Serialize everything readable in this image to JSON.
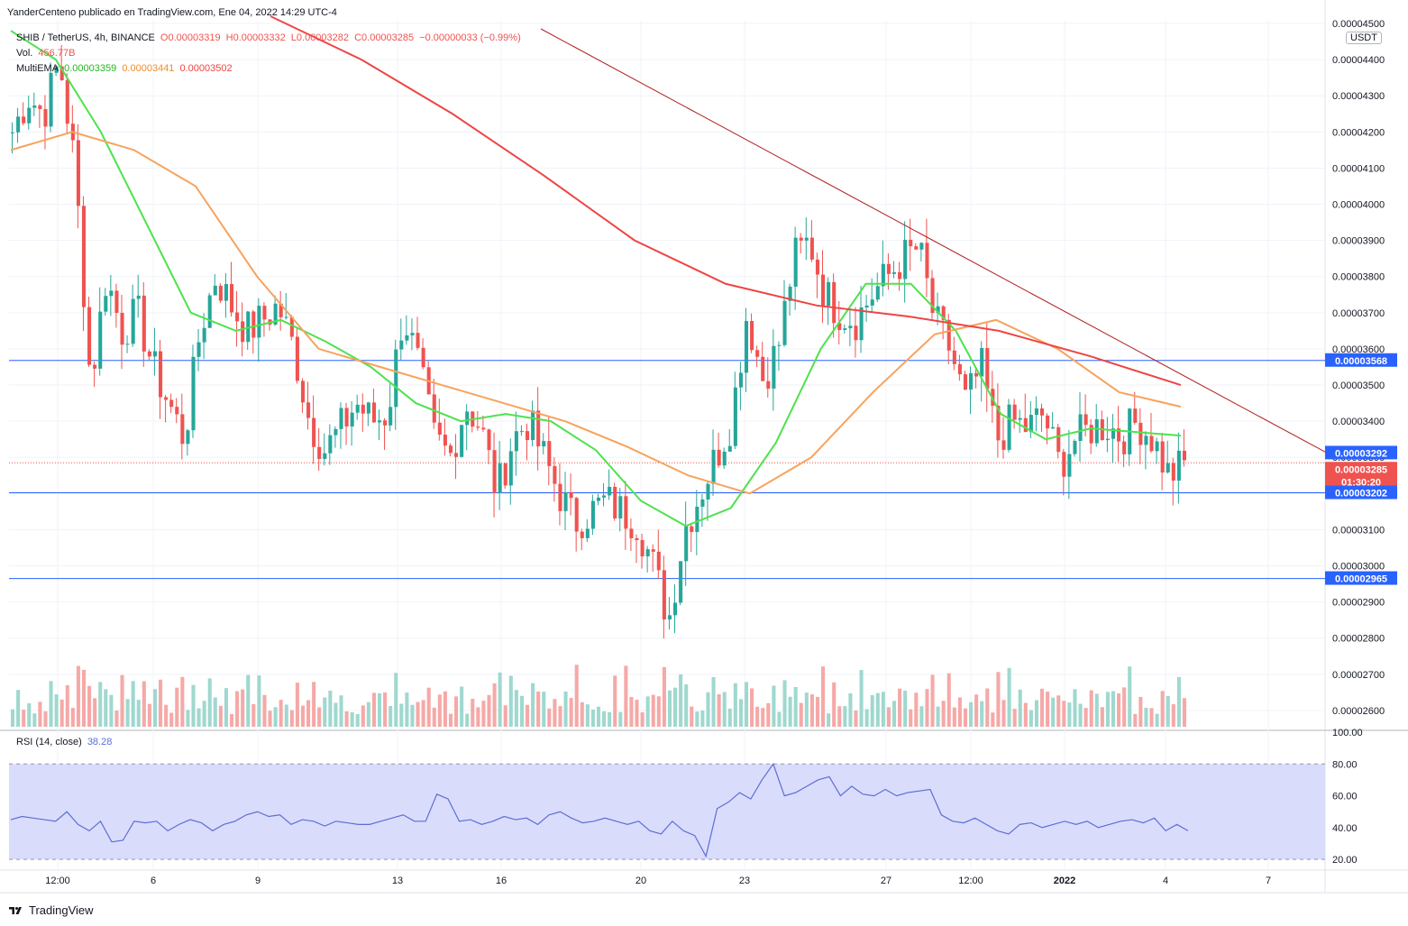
{
  "publish_line": "YanderCenteno publicado en TradingView.com, Ene 04, 2022 14:29 UTC-4",
  "header": {
    "symbol": "SHIB / TetherUS, 4h, BINANCE",
    "open": "O0.00003319",
    "high": "H0.00003332",
    "low": "L0.00003282",
    "close": "C0.00003285",
    "change": "−0.00000033 (−0.99%)",
    "vol_label": "Vol.",
    "vol_value": "456.77B",
    "ema_label": "MultiEMA",
    "ema_values": [
      "0.00003359",
      "0.00003441",
      "0.00003502"
    ]
  },
  "rsi_header": {
    "label": "RSI (14, close)",
    "value": "38.28"
  },
  "currency_badge": "USDT",
  "footer_brand": "TradingView",
  "colors": {
    "up": "#26a69a",
    "down": "#ef5350",
    "ema_fast": "#4ee24e",
    "ema_mid": "#f7a35c",
    "ema_slow": "#ef4444",
    "trend": "#b22222",
    "hline": "#2962ff",
    "rsi": "#5b6fd6",
    "rsi_band": "#d6d8fb"
  },
  "chart_data": {
    "type": "candlestick",
    "timeframe": "4h",
    "price_axis": {
      "ticks": [
        "0.00004500",
        "0.00004400",
        "0.00004300",
        "0.00004200",
        "0.00004100",
        "0.00004000",
        "0.00003900",
        "0.00003800",
        "0.00003700",
        "0.00003600",
        "0.00003500",
        "0.00003400",
        "0.00003300",
        "0.00003200",
        "0.00003100",
        "0.00003000",
        "0.00002900",
        "0.00002800",
        "0.00002700",
        "0.00002600"
      ],
      "ylim": [
        2.55e-05,
        4.51e-05
      ]
    },
    "x_axis_labels": [
      "12:00",
      "6",
      "9",
      "13",
      "16",
      "20",
      "23",
      "27",
      "12:00",
      "2022",
      "4",
      "7"
    ],
    "price_markers": [
      {
        "label": "0.00003568",
        "value": 3.568e-05,
        "color": "#2962ff"
      },
      {
        "label": "0.00003292",
        "value": 3.292e-05,
        "color": "#2962ff"
      },
      {
        "label": "0.00003285",
        "value": 3.285e-05,
        "color": "#ef5350"
      },
      {
        "label": "01:30:20",
        "value": 3.285e-05,
        "color": "#ef5350"
      },
      {
        "label": "0.00003202",
        "value": 3.202e-05,
        "color": "#2962ff"
      },
      {
        "label": "0.00002965",
        "value": 2.965e-05,
        "color": "#2962ff"
      }
    ],
    "horizontal_lines": [
      3.568e-05,
      3.202e-05,
      2.965e-05
    ],
    "trendline": {
      "from": [
        0,
        4.62e-05
      ],
      "to": [
        1.0,
        3.29e-05
      ]
    },
    "close_path": [
      4.2e-05,
      4.3e-05,
      4.25e-05,
      4.4e-05,
      4.1e-05,
      3.5e-05,
      3.8e-05,
      3.65e-05,
      3.7e-05,
      3.55e-05,
      3.45e-05,
      3.35e-05,
      3.65e-05,
      3.8e-05,
      3.72e-05,
      3.65e-05,
      3.68e-05,
      3.72e-05,
      3.6e-05,
      3.4e-05,
      3.32e-05,
      3.38e-05,
      3.45e-05,
      3.4e-05,
      3.42e-05,
      3.7e-05,
      3.55e-05,
      3.35e-05,
      3.3e-05,
      3.45e-05,
      3.38e-05,
      3.2e-05,
      3.35e-05,
      3.4e-05,
      3.3e-05,
      3.2e-05,
      3.12e-05,
      3.15e-05,
      3.18e-05,
      3.15e-05,
      3.12e-05,
      3e-05,
      2.85e-05,
      3.1e-05,
      3.2e-05,
      3.3e-05,
      3.4e-05,
      3.7e-05,
      3.52e-05,
      3.6e-05,
      3.85e-05,
      3.9e-05,
      3.75e-05,
      3.7e-05,
      3.68e-05,
      3.75e-05,
      3.8e-05,
      3.85e-05,
      3.88e-05,
      3.68e-05,
      3.6e-05,
      3.45e-05,
      3.55e-05,
      3.35e-05,
      3.4e-05,
      3.38e-05,
      3.42e-05,
      3.28e-05,
      3.35e-05,
      3.38e-05,
      3.39e-05,
      3.36e-05,
      3.4e-05,
      3.35e-05,
      3.25e-05,
      3.28e-05
    ],
    "ema_fast": [
      4.48e-05,
      4.4e-05,
      4.2e-05,
      3.95e-05,
      3.7e-05,
      3.65e-05,
      3.68e-05,
      3.62e-05,
      3.55e-05,
      3.45e-05,
      3.4e-05,
      3.42e-05,
      3.4e-05,
      3.32e-05,
      3.18e-05,
      3.11e-05,
      3.16e-05,
      3.34e-05,
      3.6e-05,
      3.78e-05,
      3.78e-05,
      3.65e-05,
      3.42e-05,
      3.35e-05,
      3.38e-05,
      3.37e-05,
      3.36e-05
    ],
    "ema_mid": [
      4.15e-05,
      4.2e-05,
      4.15e-05,
      4.05e-05,
      3.8e-05,
      3.6e-05,
      3.55e-05,
      3.5e-05,
      3.45e-05,
      3.4e-05,
      3.33e-05,
      3.25e-05,
      3.2e-05,
      3.3e-05,
      3.48e-05,
      3.64e-05,
      3.68e-05,
      3.6e-05,
      3.48e-05,
      3.44e-05
    ],
    "ema_slow": [
      4.52e-05,
      4.4e-05,
      4.25e-05,
      4.08e-05,
      3.9e-05,
      3.78e-05,
      3.72e-05,
      3.69e-05,
      3.65e-05,
      3.58e-05,
      3.5e-05
    ],
    "volume": {
      "label": "Vol.",
      "last": "456.77B"
    },
    "rsi": {
      "period": 14,
      "last": 38.28,
      "ylim": [
        15,
        100
      ],
      "levels": [
        20,
        80
      ],
      "ticks": [
        "100.00",
        "80.00",
        "60.00",
        "40.00",
        "20.00"
      ],
      "values": [
        45,
        47,
        46,
        45,
        44,
        50,
        42,
        38,
        44,
        31,
        32,
        44,
        43,
        44,
        38,
        42,
        45,
        43,
        38,
        42,
        44,
        48,
        50,
        47,
        48,
        42,
        45,
        44,
        41,
        44,
        43,
        42,
        42,
        44,
        46,
        48,
        44,
        44,
        61,
        58,
        44,
        45,
        42,
        44,
        47,
        45,
        46,
        42,
        48,
        50,
        46,
        43,
        44,
        46,
        44,
        42,
        44,
        38,
        36,
        44,
        38,
        35,
        22,
        52,
        56,
        62,
        58,
        70,
        80,
        60,
        62,
        66,
        70,
        72,
        60,
        66,
        61,
        60,
        64,
        60,
        62,
        63,
        64,
        48,
        44,
        43,
        46,
        42,
        38,
        36,
        42,
        43,
        40,
        42,
        44,
        42,
        44,
        40,
        42,
        44,
        45,
        43,
        46,
        38,
        42,
        38
      ]
    }
  }
}
